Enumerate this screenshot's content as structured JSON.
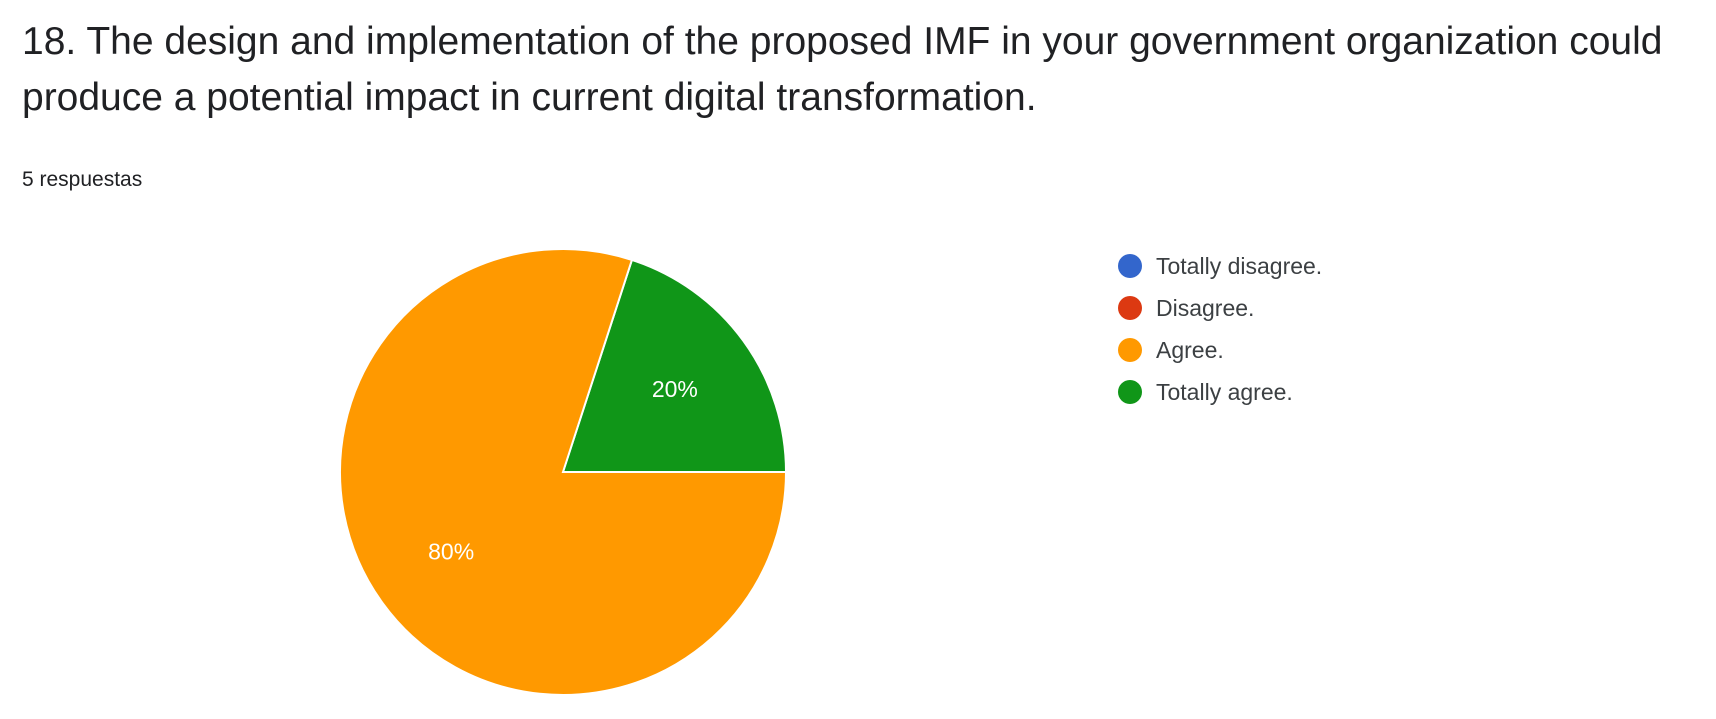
{
  "question": {
    "title": "18. The design and implementation of the proposed IMF in your government organization could produce a potential impact in current digital transformation.",
    "response_count": "5 respuestas"
  },
  "chart_data": {
    "type": "pie",
    "categories": [
      "Totally disagree.",
      "Disagree.",
      "Agree.",
      "Totally agree."
    ],
    "values": [
      0,
      0,
      80,
      20
    ],
    "colors": [
      "#3366cc",
      "#dc3912",
      "#ff9900",
      "#109618"
    ],
    "data_labels": [
      "",
      "",
      "80%",
      "20%"
    ],
    "legend_position": "right"
  }
}
